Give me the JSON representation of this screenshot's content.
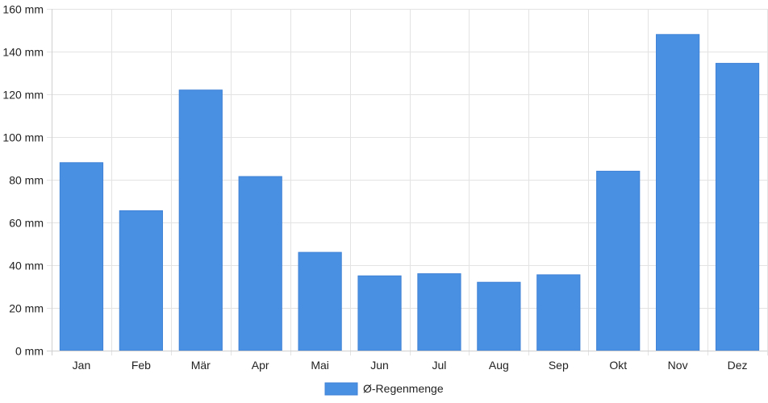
{
  "chart_data": {
    "type": "bar",
    "categories": [
      "Jan",
      "Feb",
      "Mär",
      "Apr",
      "Mai",
      "Jun",
      "Jul",
      "Aug",
      "Sep",
      "Okt",
      "Nov",
      "Dez"
    ],
    "series": [
      {
        "name": "Ø-Regenmenge",
        "values": [
          88,
          65.5,
          122,
          81.5,
          46,
          35,
          36,
          32,
          35.5,
          84,
          148,
          134.5
        ],
        "color": "#4a90e2"
      }
    ],
    "yticks": [
      "0 mm",
      "20 mm",
      "40 mm",
      "60 mm",
      "80 mm",
      "100 mm",
      "120 mm",
      "140 mm",
      "160 mm"
    ],
    "ylim": [
      0,
      160
    ],
    "ystep": 20,
    "grid": true,
    "legend_position": "bottom-center"
  }
}
